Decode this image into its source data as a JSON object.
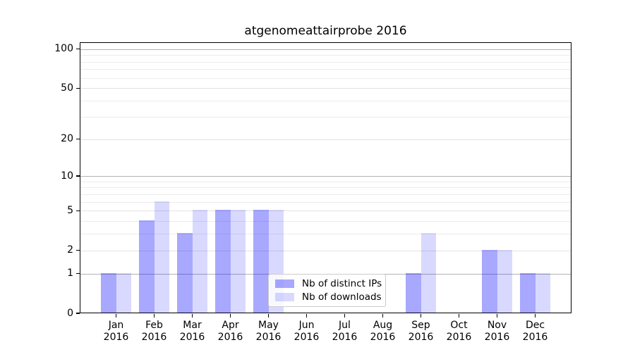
{
  "chart_data": {
    "type": "bar",
    "title": "atgenomeattairprobe 2016",
    "categories": [
      "Jan",
      "Feb",
      "Mar",
      "Apr",
      "May",
      "Jun",
      "Jul",
      "Aug",
      "Sep",
      "Oct",
      "Nov",
      "Dec"
    ],
    "category_year": "2016",
    "series": [
      {
        "name": "Nb of distinct IPs",
        "color": "rgba(0,0,255,0.34)",
        "values": [
          1,
          4,
          3,
          5,
          5,
          0,
          0,
          0,
          1,
          0,
          2,
          1
        ]
      },
      {
        "name": "Nb of downloads",
        "color": "rgba(0,0,255,0.15)",
        "values": [
          1,
          6,
          5,
          5,
          5,
          0,
          0,
          0,
          3,
          0,
          2,
          1
        ]
      }
    ],
    "yscale": "log1p",
    "ylim": [
      0,
      113
    ],
    "y_major_ticks": [
      0,
      1,
      2,
      5,
      10,
      20,
      50,
      100
    ],
    "y_minor_gridlines": [
      3,
      4,
      6,
      7,
      8,
      9,
      30,
      40,
      60,
      70,
      80,
      90
    ],
    "y_power_gridlines": [
      1,
      10,
      100
    ],
    "grid": true,
    "legend_position": "lower center",
    "colors": {
      "axis": "#000000",
      "tick_label": "#000000",
      "grid_power": "#b3b3b3",
      "grid_labeled": "#e3e3e3",
      "grid_minor": "#ececec",
      "legend_border": "#cccccc",
      "background": "#ffffff"
    }
  }
}
